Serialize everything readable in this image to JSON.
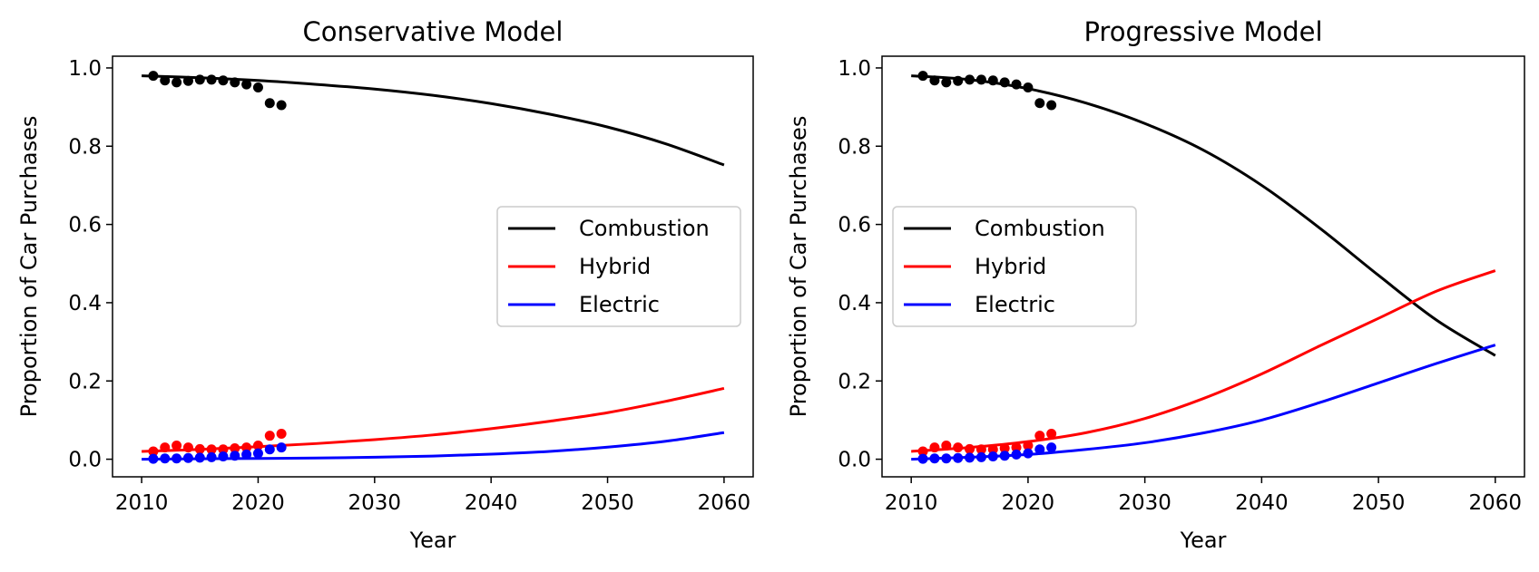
{
  "chart_data": [
    {
      "type": "line",
      "title": "Conservative Model",
      "xlabel": "Year",
      "ylabel": "Proportion of Car Purchases",
      "xlim": [
        2007.5,
        2062.5
      ],
      "ylim": [
        -0.045,
        1.03
      ],
      "xticks": [
        2010,
        2020,
        2030,
        2040,
        2050,
        2060
      ],
      "yticks": [
        0.0,
        0.2,
        0.4,
        0.6,
        0.8,
        1.0
      ],
      "grid": false,
      "legend_position": "center-right",
      "x": [
        2010,
        2015,
        2020,
        2025,
        2030,
        2035,
        2040,
        2045,
        2050,
        2055,
        2060
      ],
      "series": [
        {
          "name": "Combustion",
          "color": "#000000",
          "values": [
            0.98,
            0.975,
            0.968,
            0.958,
            0.946,
            0.93,
            0.909,
            0.882,
            0.849,
            0.806,
            0.752
          ]
        },
        {
          "name": "Hybrid",
          "color": "#ff0000",
          "values": [
            0.02,
            0.025,
            0.032,
            0.04,
            0.05,
            0.062,
            0.078,
            0.097,
            0.119,
            0.148,
            0.181
          ]
        },
        {
          "name": "Electric",
          "color": "#0000ff",
          "values": [
            0.0,
            0.001,
            0.002,
            0.003,
            0.005,
            0.008,
            0.013,
            0.02,
            0.031,
            0.046,
            0.068
          ]
        }
      ],
      "observed": {
        "x": [
          2011,
          2012,
          2013,
          2014,
          2015,
          2016,
          2017,
          2018,
          2019,
          2020,
          2021,
          2022
        ],
        "Combustion": [
          0.98,
          0.968,
          0.963,
          0.967,
          0.97,
          0.97,
          0.968,
          0.963,
          0.958,
          0.95,
          0.91,
          0.905
        ],
        "Hybrid": [
          0.02,
          0.03,
          0.035,
          0.03,
          0.026,
          0.025,
          0.025,
          0.028,
          0.03,
          0.035,
          0.06,
          0.065
        ],
        "Electric": [
          0.001,
          0.002,
          0.002,
          0.003,
          0.004,
          0.005,
          0.007,
          0.009,
          0.012,
          0.015,
          0.025,
          0.03
        ]
      }
    },
    {
      "type": "line",
      "title": "Progressive Model",
      "xlabel": "Year",
      "ylabel": "Proportion of Car Purchases",
      "xlim": [
        2007.5,
        2062.5
      ],
      "ylim": [
        -0.045,
        1.03
      ],
      "xticks": [
        2010,
        2020,
        2030,
        2040,
        2050,
        2060
      ],
      "yticks": [
        0.0,
        0.2,
        0.4,
        0.6,
        0.8,
        1.0
      ],
      "grid": false,
      "legend_position": "center-left",
      "x": [
        2010,
        2015,
        2020,
        2025,
        2030,
        2035,
        2040,
        2045,
        2050,
        2055,
        2060
      ],
      "series": [
        {
          "name": "Combustion",
          "color": "#000000",
          "values": [
            0.98,
            0.97,
            0.947,
            0.91,
            0.858,
            0.79,
            0.7,
            0.59,
            0.47,
            0.355,
            0.265
          ]
        },
        {
          "name": "Hybrid",
          "color": "#ff0000",
          "values": [
            0.02,
            0.03,
            0.045,
            0.068,
            0.104,
            0.155,
            0.218,
            0.29,
            0.36,
            0.43,
            0.482
          ]
        },
        {
          "name": "Electric",
          "color": "#0000ff",
          "values": [
            0.0,
            0.005,
            0.012,
            0.025,
            0.042,
            0.067,
            0.1,
            0.145,
            0.195,
            0.245,
            0.292
          ]
        }
      ],
      "observed": {
        "x": [
          2011,
          2012,
          2013,
          2014,
          2015,
          2016,
          2017,
          2018,
          2019,
          2020,
          2021,
          2022
        ],
        "Combustion": [
          0.98,
          0.968,
          0.963,
          0.967,
          0.97,
          0.97,
          0.968,
          0.963,
          0.958,
          0.95,
          0.91,
          0.905
        ],
        "Hybrid": [
          0.02,
          0.03,
          0.035,
          0.03,
          0.026,
          0.025,
          0.025,
          0.028,
          0.03,
          0.035,
          0.06,
          0.065
        ],
        "Electric": [
          0.001,
          0.002,
          0.002,
          0.003,
          0.004,
          0.005,
          0.007,
          0.009,
          0.012,
          0.015,
          0.025,
          0.03
        ]
      }
    }
  ]
}
